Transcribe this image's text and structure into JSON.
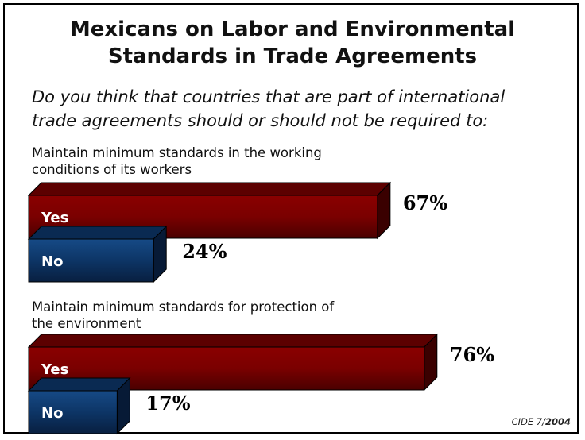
{
  "title_line1": "Mexicans on Labor and Environmental",
  "title_line2": "Standards in Trade Agreements",
  "question_line1": "Do you think that countries that are part of international",
  "question_line2": "trade agreements should or should not be required to:",
  "footer_source": "CIDE 7/",
  "footer_year": "2004",
  "colors": {
    "yes": "#7a0000",
    "no": "#0d3566"
  },
  "chart_data": [
    {
      "type": "bar",
      "title_line1": "Maintain minimum standards in the working",
      "title_line2": "conditions of its workers",
      "categories": [
        "Yes",
        "No"
      ],
      "values": [
        67,
        24
      ],
      "value_labels": [
        "67%",
        "24%"
      ]
    },
    {
      "type": "bar",
      "title_line1": "Maintain minimum standards for protection of",
      "title_line2": "the environment",
      "categories": [
        "Yes",
        "No"
      ],
      "values": [
        76,
        17
      ],
      "value_labels": [
        "76%",
        "17%"
      ]
    }
  ]
}
